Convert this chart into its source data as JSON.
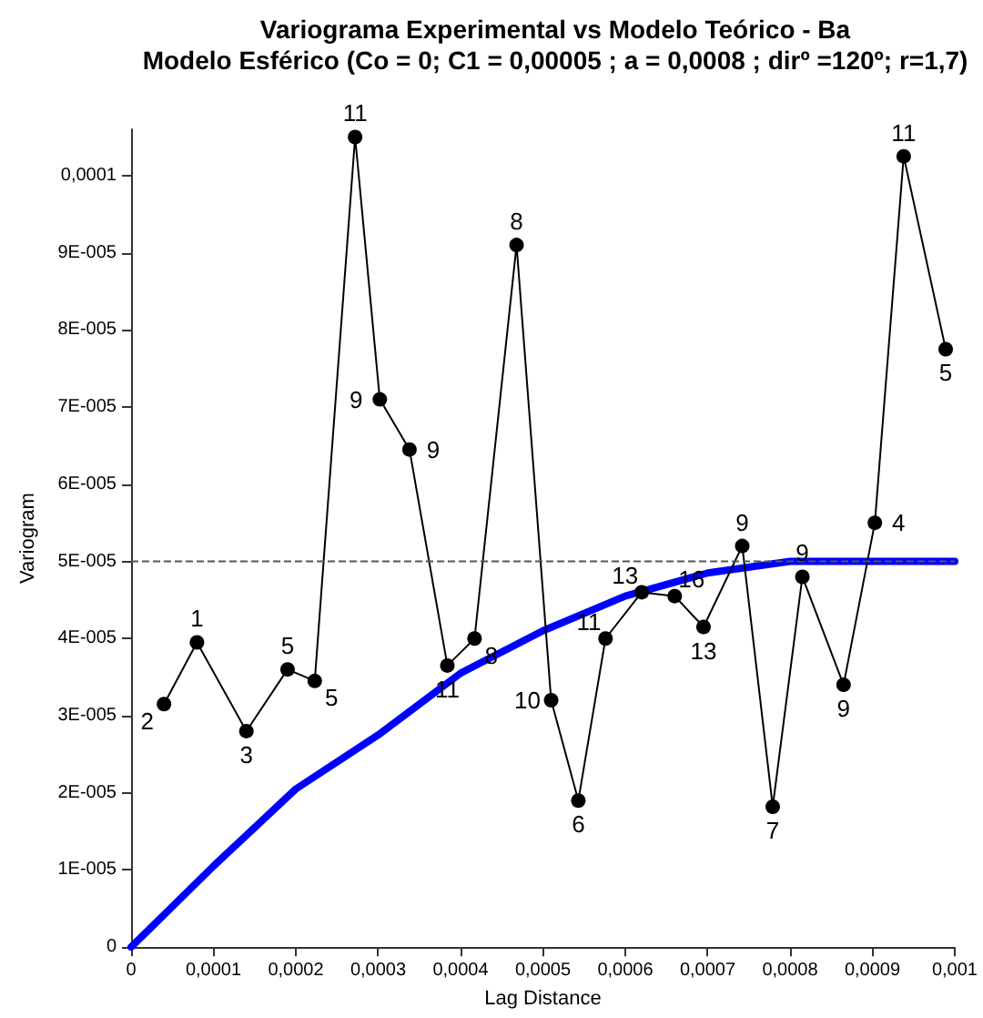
{
  "chart_data": {
    "type": "line",
    "title": "Variograma Experimental vs Modelo Teórico - Ba",
    "subtitle": "Modelo Esférico (Co = 0; C1 = 0,00005 ; a = 0,0008 ; dirº =120º; r=1,7)",
    "xlabel": "Lag Distance",
    "ylabel": "Variogram",
    "xlim": [
      0,
      0.001
    ],
    "xticks": [
      0,
      {
        "value": 0.0001,
        "label": "0,0001"
      },
      {
        "value": 0.0002,
        "label": "0,0002"
      },
      {
        "value": 0.0003,
        "label": "0,0003"
      },
      {
        "value": 0.0004,
        "label": "0,0004"
      },
      {
        "value": 0.0005,
        "label": "0,0005"
      },
      {
        "value": 0.0006,
        "label": "0,0006"
      },
      {
        "value": 0.0007,
        "label": "0,0007"
      },
      {
        "value": 0.0008,
        "label": "0,0008"
      },
      {
        "value": 0.0009,
        "label": "0,0009"
      },
      {
        "value": 0.001,
        "label": "0,001"
      }
    ],
    "ylim": [
      0,
      0.000106
    ],
    "yticks": [
      0,
      {
        "value": 1e-05,
        "label": "1E-005"
      },
      {
        "value": 2e-05,
        "label": "2E-005"
      },
      {
        "value": 3e-05,
        "label": "3E-005"
      },
      {
        "value": 4e-05,
        "label": "4E-005"
      },
      {
        "value": 5e-05,
        "label": "5E-005"
      },
      {
        "value": 6e-05,
        "label": "6E-005"
      },
      {
        "value": 7e-05,
        "label": "7E-005"
      },
      {
        "value": 8e-05,
        "label": "8E-005"
      },
      {
        "value": 9e-05,
        "label": "9E-005"
      },
      {
        "value": 0.0001,
        "label": "0,0001"
      }
    ],
    "grid": false,
    "series": [
      {
        "color": "#000000",
        "marker": "circle",
        "line_style": "solid",
        "x": [
          4e-05,
          8e-05,
          0.00014,
          0.00019,
          0.000223,
          0.000272,
          0.000302,
          0.000338,
          0.000384,
          0.000417,
          0.000468,
          0.00051,
          0.000543,
          0.000576,
          0.00062,
          0.00066,
          0.000695,
          0.000742,
          0.000779,
          0.000815,
          0.000865,
          0.000903,
          0.000938,
          0.000989
        ],
        "values": [
          3.15e-05,
          3.95e-05,
          2.8e-05,
          3.6e-05,
          3.45e-05,
          0.000105,
          7.1e-05,
          6.45e-05,
          3.65e-05,
          4e-05,
          9.1e-05,
          3.2e-05,
          1.9e-05,
          4e-05,
          4.6e-05,
          4.55e-05,
          4.15e-05,
          5.2e-05,
          1.82e-05,
          4.8e-05,
          3.4e-05,
          5.5e-05,
          0.0001025,
          7.75e-05
        ]
      },
      {
        "color": "#0000ff",
        "marker": "none",
        "line_style": "solid",
        "x": [
          0,
          0.0001,
          0.0002,
          0.0003,
          0.0004,
          0.0005,
          0.0006,
          0.0007,
          0.0008,
          0.001
        ],
        "values": [
          0,
          1.05e-05,
          2.05e-05,
          2.75e-05,
          3.55e-05,
          4.1e-05,
          4.55e-05,
          4.85e-05,
          5e-05,
          5e-05
        ]
      }
    ],
    "annotations": [
      {
        "text": "2",
        "x": 4e-05,
        "y": 3.15e-05
      },
      {
        "text": "1",
        "x": 8e-05,
        "y": 3.95e-05
      },
      {
        "text": "3",
        "x": 0.00014,
        "y": 2.8e-05
      },
      {
        "text": "5",
        "x": 0.00019,
        "y": 3.6e-05
      },
      {
        "text": "5",
        "x": 0.000223,
        "y": 3.45e-05
      },
      {
        "text": "11",
        "x": 0.000272,
        "y": 0.000105
      },
      {
        "text": "9",
        "x": 0.000302,
        "y": 7.1e-05
      },
      {
        "text": "9",
        "x": 0.000338,
        "y": 6.45e-05
      },
      {
        "text": "11",
        "x": 0.000384,
        "y": 3.65e-05
      },
      {
        "text": "8",
        "x": 0.000417,
        "y": 4e-05
      },
      {
        "text": "8",
        "x": 0.000468,
        "y": 9.1e-05
      },
      {
        "text": "10",
        "x": 0.00051,
        "y": 3.2e-05
      },
      {
        "text": "6",
        "x": 0.000543,
        "y": 1.9e-05
      },
      {
        "text": "11",
        "x": 0.000576,
        "y": 4e-05
      },
      {
        "text": "13",
        "x": 0.00062,
        "y": 4.6e-05
      },
      {
        "text": "16",
        "x": 0.00066,
        "y": 4.55e-05
      },
      {
        "text": "13",
        "x": 0.000695,
        "y": 4.15e-05
      },
      {
        "text": "9",
        "x": 0.000742,
        "y": 5.2e-05
      },
      {
        "text": "7",
        "x": 0.000779,
        "y": 1.82e-05
      },
      {
        "text": "9",
        "x": 0.000815,
        "y": 4.8e-05
      },
      {
        "text": "9",
        "x": 0.000865,
        "y": 3.4e-05
      },
      {
        "text": "4",
        "x": 0.000903,
        "y": 5.5e-05
      },
      {
        "text": "11",
        "x": 0.000938,
        "y": 0.0001025
      },
      {
        "text": "5",
        "x": 0.000989,
        "y": 7.75e-05
      }
    ],
    "ref_lines": [
      {
        "axis": "y",
        "value": 5e-05,
        "label": null,
        "color": "#555555",
        "line_style": "dashed"
      }
    ]
  }
}
